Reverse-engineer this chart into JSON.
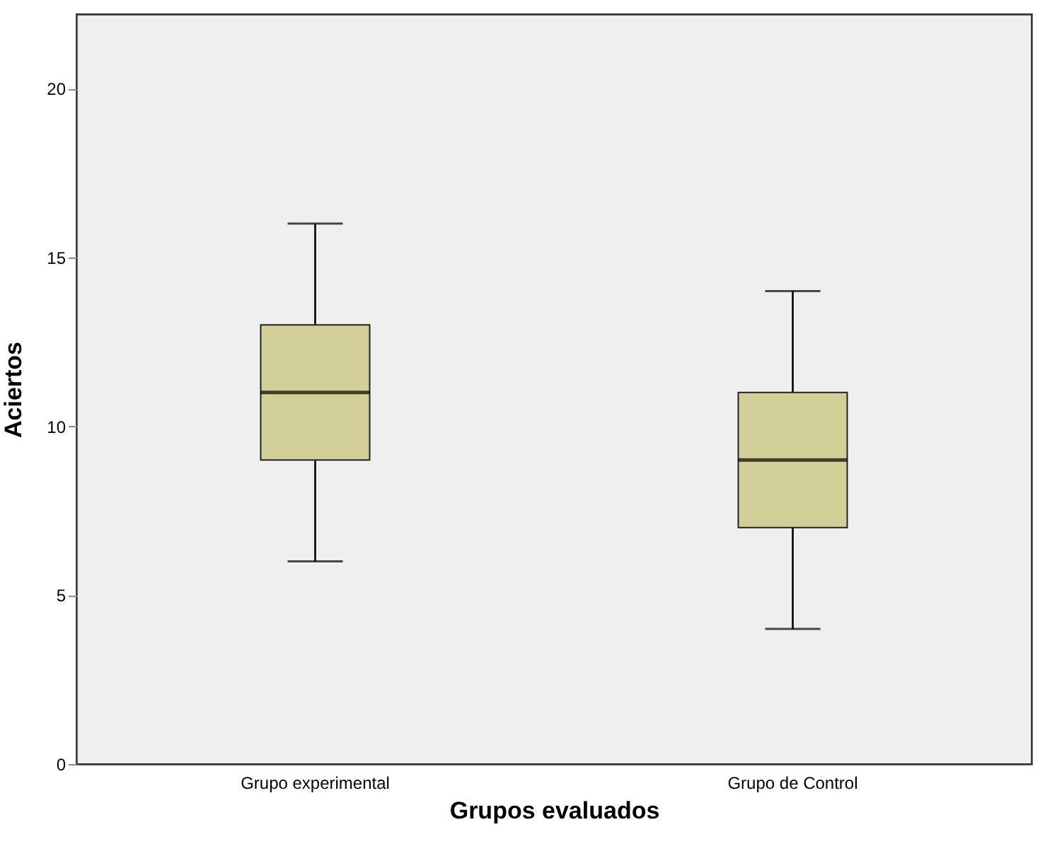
{
  "chart_data": {
    "type": "box",
    "xlabel": "Grupos evaluados",
    "ylabel": "Aciertos",
    "categories": [
      "Grupo experimental",
      "Grupo de Control"
    ],
    "color": "#d3cf98",
    "ylim": [
      0,
      22.2
    ],
    "yticks": [
      0,
      5,
      10,
      15,
      20
    ],
    "grid": false,
    "boxes": [
      {
        "low": 6,
        "q1": 9,
        "median": 11,
        "q3": 13,
        "high": 16
      },
      {
        "low": 4,
        "q1": 7,
        "median": 9,
        "q3": 11,
        "high": 14
      }
    ]
  }
}
